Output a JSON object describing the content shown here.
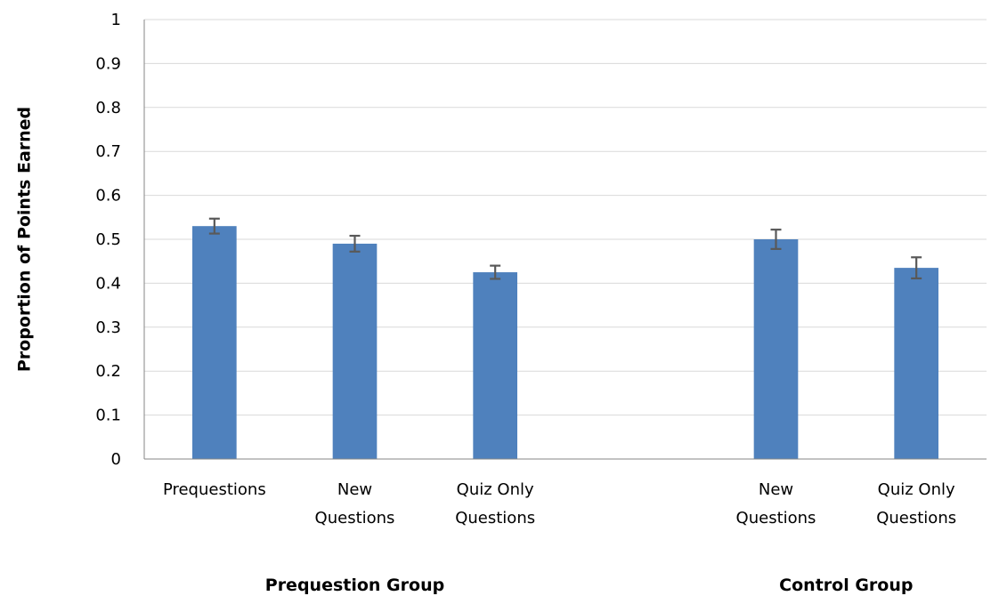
{
  "chart_data": {
    "type": "bar",
    "ylabel": "Proportion of Points Earned",
    "ylim": [
      0,
      1
    ],
    "yticks": [
      "0",
      "0.1",
      "0.2",
      "0.3",
      "0.4",
      "0.5",
      "0.6",
      "0.7",
      "0.8",
      "0.9",
      "1"
    ],
    "grid": true,
    "legend": "none",
    "bar_color": "#4F81BD",
    "errorbar_color": "#595959",
    "groups": [
      {
        "name": "Prequestion Group",
        "categories": [
          {
            "label": [
              "Prequestions"
            ],
            "value": 0.53,
            "error": 0.017
          },
          {
            "label": [
              "New",
              "Questions"
            ],
            "value": 0.49,
            "error": 0.018
          },
          {
            "label": [
              "Quiz Only",
              "Questions"
            ],
            "value": 0.425,
            "error": 0.015
          }
        ]
      },
      {
        "name": "Control Group",
        "categories": [
          {
            "label": [
              "New",
              "Questions"
            ],
            "value": 0.5,
            "error": 0.022
          },
          {
            "label": [
              "Quiz Only",
              "Questions"
            ],
            "value": 0.435,
            "error": 0.024
          }
        ]
      }
    ]
  }
}
